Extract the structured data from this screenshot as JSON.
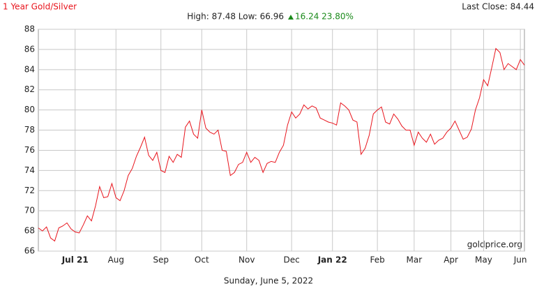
{
  "chart_data": {
    "type": "line",
    "title": "1 Year Gold/Silver",
    "last_close": "Last Close: 84.44",
    "stats": "High: 87.48 Low: 66.96",
    "change": "16.24 23.80%",
    "source": "goldprice.org",
    "date": "Sunday, June 5, 2022",
    "color": "#e8141c",
    "grid": true,
    "ylim": [
      66,
      88
    ],
    "yticks": [
      66,
      68,
      70,
      72,
      74,
      76,
      78,
      80,
      82,
      84,
      86,
      88
    ],
    "categories": [
      null,
      null,
      null,
      null,
      null,
      null,
      null,
      null,
      null,
      "Jul 21",
      null,
      null,
      null,
      null,
      null,
      null,
      null,
      null,
      null,
      "Aug",
      null,
      null,
      null,
      null,
      null,
      null,
      null,
      null,
      null,
      null,
      "Sep",
      null,
      null,
      null,
      null,
      null,
      null,
      null,
      null,
      null,
      "Oct",
      null,
      null,
      null,
      null,
      null,
      null,
      null,
      null,
      null,
      null,
      "Nov",
      null,
      null,
      null,
      null,
      null,
      null,
      null,
      null,
      null,
      null,
      "Dec",
      null,
      null,
      null,
      null,
      null,
      null,
      null,
      null,
      null,
      "Jan 22",
      null,
      null,
      null,
      null,
      null,
      null,
      null,
      null,
      null,
      null,
      "Feb",
      null,
      null,
      null,
      null,
      null,
      null,
      null,
      null,
      "Mar",
      null,
      null,
      null,
      null,
      null,
      null,
      null,
      null,
      "Apr",
      null,
      null,
      null,
      null,
      null,
      null,
      null,
      "May",
      null,
      null,
      null,
      null,
      null,
      null,
      null,
      null,
      "Jun",
      null
    ],
    "values": [
      68.3,
      68.0,
      68.4,
      67.3,
      67.0,
      68.3,
      68.5,
      68.8,
      68.2,
      67.9,
      67.8,
      68.6,
      69.5,
      69.0,
      70.5,
      72.4,
      71.3,
      71.4,
      72.7,
      71.3,
      71.0,
      72.0,
      73.5,
      74.2,
      75.4,
      76.3,
      77.3,
      75.5,
      75.0,
      75.8,
      74.0,
      73.8,
      75.4,
      74.8,
      75.6,
      75.3,
      78.3,
      78.9,
      77.6,
      77.2,
      80.0,
      78.2,
      77.8,
      77.6,
      78.0,
      76.0,
      75.9,
      73.5,
      73.8,
      74.6,
      74.8,
      75.8,
      74.8,
      75.3,
      75.0,
      73.8,
      74.7,
      74.9,
      74.8,
      75.8,
      76.5,
      78.5,
      79.8,
      79.2,
      79.6,
      80.5,
      80.1,
      80.4,
      80.2,
      79.2,
      79.0,
      78.8,
      78.7,
      78.5,
      80.7,
      80.4,
      80.0,
      79.0,
      78.8,
      75.6,
      76.2,
      77.5,
      79.6,
      80.0,
      80.3,
      78.8,
      78.6,
      79.6,
      79.1,
      78.4,
      78.0,
      78.0,
      76.5,
      77.8,
      77.2,
      76.8,
      77.6,
      76.6,
      77.0,
      77.2,
      77.8,
      78.2,
      78.9,
      78.0,
      77.1,
      77.3,
      78.1,
      80.0,
      81.2,
      83.0,
      82.4,
      84.2,
      86.1,
      85.7,
      84.0,
      84.6,
      84.3,
      84.0,
      85.0,
      84.44
    ]
  }
}
